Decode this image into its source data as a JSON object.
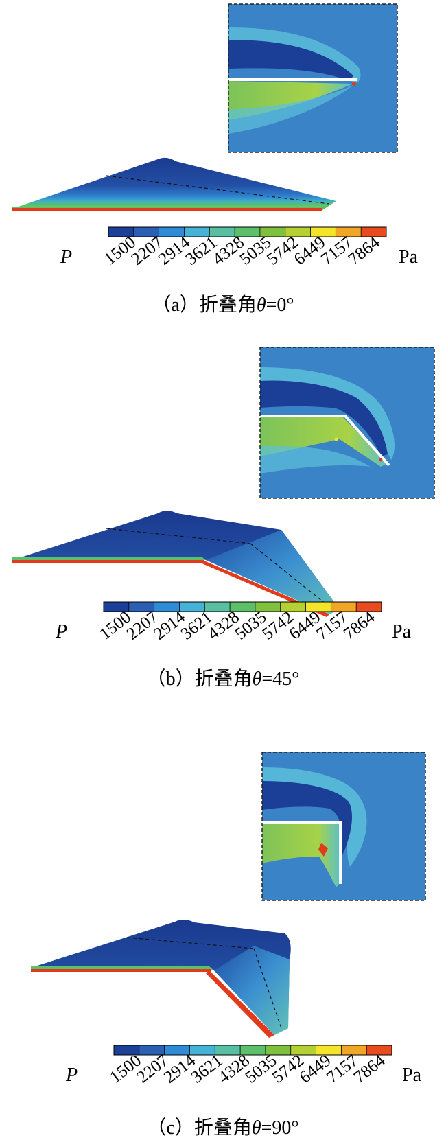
{
  "colorbar": {
    "variable": "P",
    "unit": "Pa",
    "ticks": [
      "1500",
      "2207",
      "2914",
      "3621",
      "4328",
      "5035",
      "5742",
      "6449",
      "7157",
      "7864"
    ],
    "colors": [
      "#1c3f97",
      "#2a5fb4",
      "#2f8bd6",
      "#46b2d5",
      "#59bfa3",
      "#5cbf6a",
      "#7fc13f",
      "#b5d033",
      "#f4e52b",
      "#f2a626",
      "#e84b1e"
    ]
  },
  "panels": [
    {
      "id": "a",
      "caption_prefix": "（a）折叠角",
      "theta": "θ",
      "caption_suffix": "=0°",
      "fold_angle_deg": 0
    },
    {
      "id": "b",
      "caption_prefix": "（b）折叠角",
      "theta": "θ",
      "caption_suffix": "=45°",
      "fold_angle_deg": 45
    },
    {
      "id": "c",
      "caption_prefix": "（c）折叠角",
      "theta": "θ",
      "caption_suffix": "=90°",
      "fold_angle_deg": 90
    }
  ],
  "colors": {
    "field_background": "#3a83c6",
    "low_pressure": "#1a3e95",
    "high_pressure": "#e23a1c",
    "wing_surface": "#1f4da0"
  }
}
